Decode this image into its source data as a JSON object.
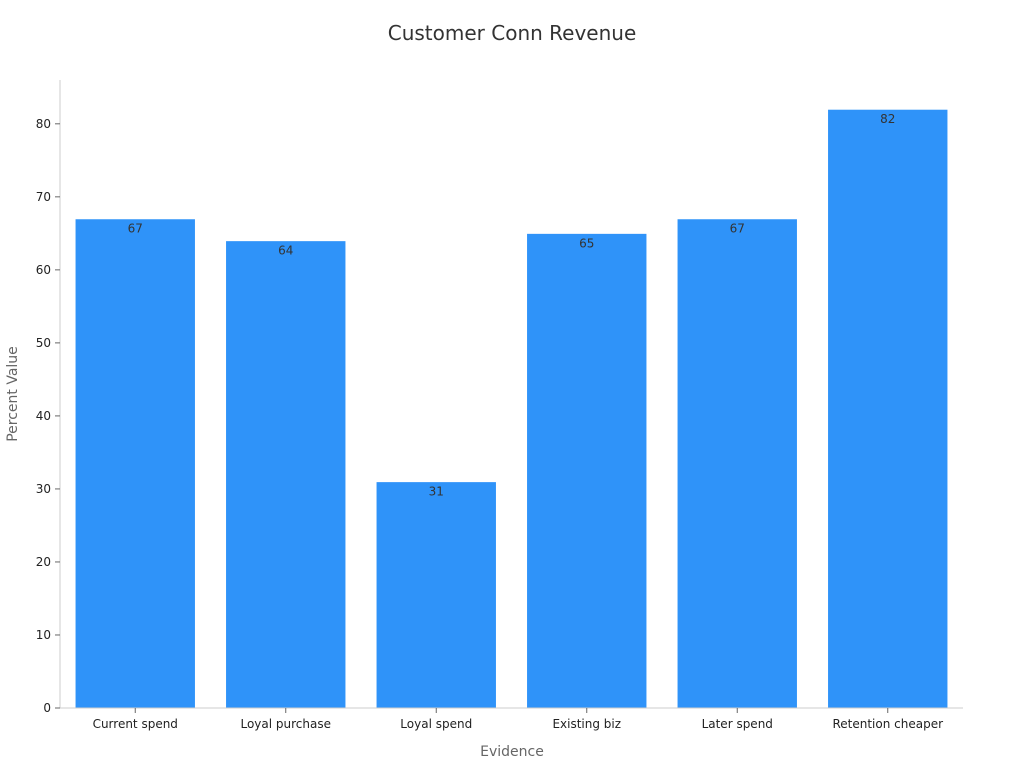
{
  "chart_data": {
    "type": "bar",
    "title": "Customer Conn Revenue",
    "xlabel": "Evidence",
    "ylabel": "Percent Value",
    "categories": [
      "Current spend",
      "Loyal purchase",
      "Loyal spend",
      "Existing biz",
      "Later spend",
      "Retention cheaper"
    ],
    "values": [
      67,
      64,
      31,
      65,
      67,
      82
    ],
    "ylim": [
      0,
      86
    ],
    "yticks": [
      0,
      10,
      20,
      30,
      40,
      50,
      60,
      70,
      80
    ],
    "grid": false,
    "legend": "none",
    "bar_color": "#2f93f9",
    "data_labels": true
  }
}
